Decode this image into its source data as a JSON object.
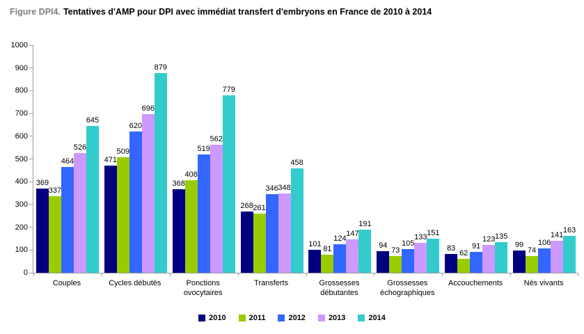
{
  "title": {
    "prefix": "Figure DPI4.",
    "text": "Tentatives d'AMP pour DPI avec immédiat transfert d'embryons en France de 2010 à 2014"
  },
  "chart_data": {
    "type": "bar",
    "title": "Tentatives d'AMP pour DPI avec immédiat transfert d'embryons en France de 2010 à 2014",
    "categories": [
      "Couples",
      "Cycles débutés",
      "Ponctions ovocytaires",
      "Transferts",
      "Grossesses débutantes",
      "Grossesses échographiques",
      "Accouchements",
      "Nés vivants"
    ],
    "series": [
      {
        "name": "2010",
        "color": "#000080",
        "values": [
          369,
          471,
          368,
          268,
          101,
          94,
          83,
          99
        ]
      },
      {
        "name": "2011",
        "color": "#99CC00",
        "values": [
          337,
          509,
          408,
          261,
          81,
          73,
          62,
          74
        ]
      },
      {
        "name": "2012",
        "color": "#3366FF",
        "values": [
          464,
          620,
          519,
          346,
          124,
          105,
          91,
          106
        ]
      },
      {
        "name": "2013",
        "color": "#CC99FF",
        "values": [
          526,
          696,
          562,
          348,
          147,
          133,
          123,
          141
        ]
      },
      {
        "name": "2014",
        "color": "#33CCCC",
        "values": [
          645,
          879,
          779,
          458,
          191,
          151,
          135,
          163
        ]
      }
    ],
    "xlabel": "",
    "ylabel": "",
    "ylim": [
      0,
      1000
    ],
    "ytick_step": 100,
    "grid": false,
    "legend_position": "bottom",
    "value_labels": true
  }
}
